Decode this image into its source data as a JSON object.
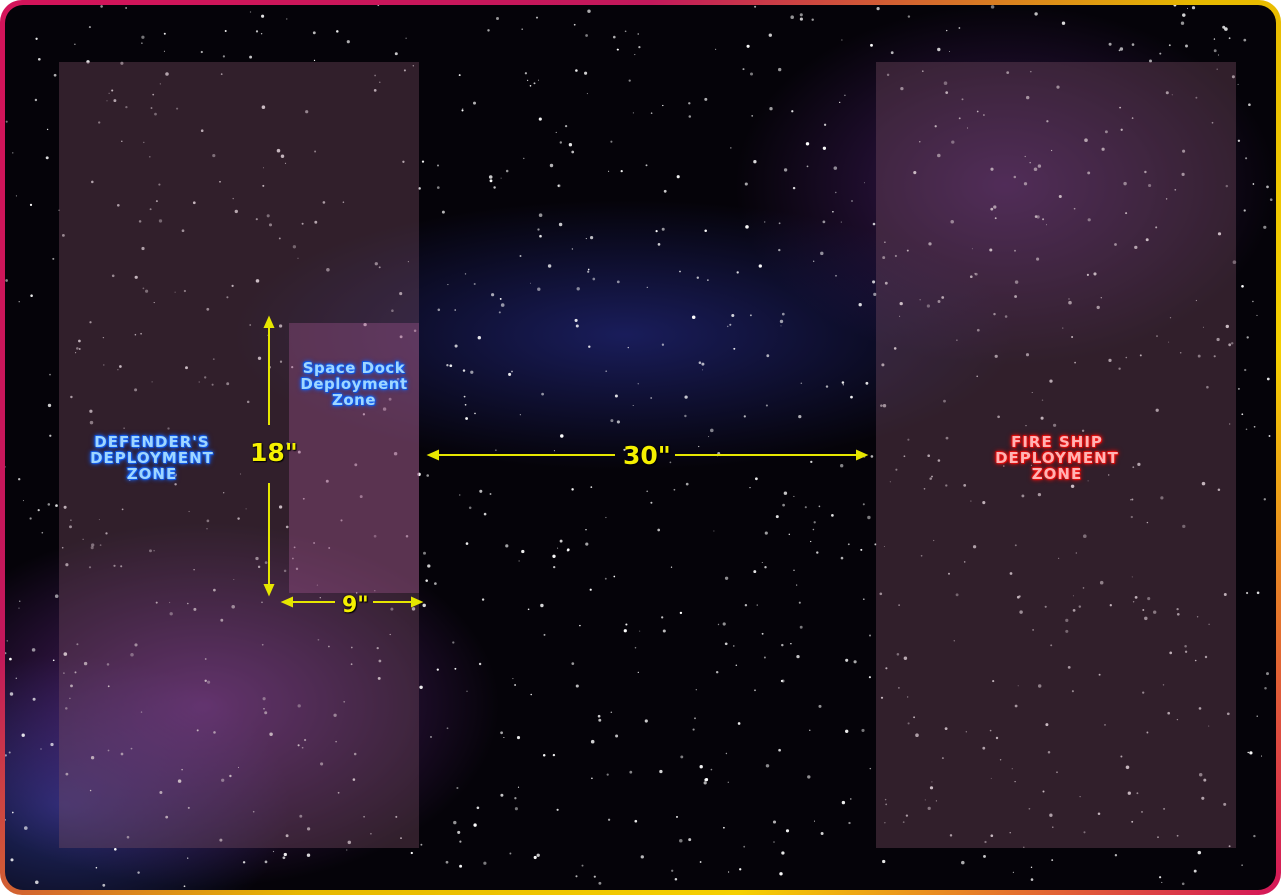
{
  "zones": {
    "defender": {
      "label": "DEFENDER'S\nDEPLOYMENT\nZONE"
    },
    "space_dock": {
      "label": "Space Dock\nDeployment\nZone"
    },
    "fire_ship": {
      "label": "FIRE SHIP\nDEPLOYMENT\nZONE"
    }
  },
  "measurements": {
    "dock_height": "18\"",
    "gap_width": "30\"",
    "dock_width": "9\""
  },
  "colors": {
    "accent_yellow": "#f5f000",
    "defender_blue": "#1a6dff",
    "fireship_red": "#ff1a1a"
  }
}
